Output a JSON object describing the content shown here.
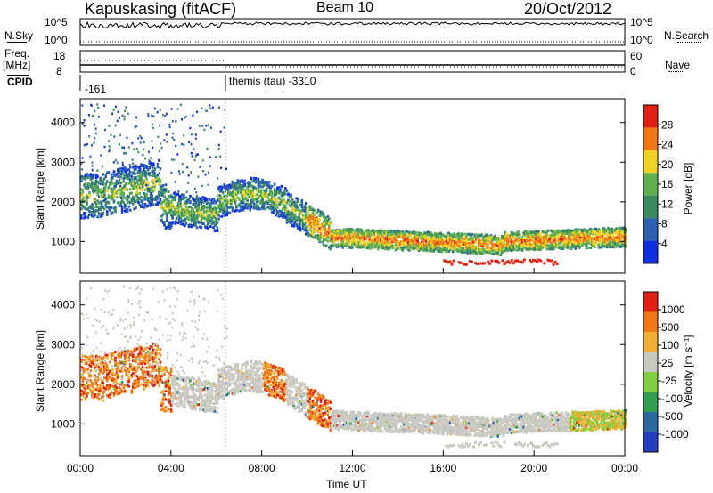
{
  "header": {
    "station": "Kapuskasing (fitACF)",
    "beam": "Beam 10",
    "date": "20/Oct/2012"
  },
  "top_panels": {
    "nsky_label": "N.Sky",
    "nsky_ticks": [
      "10^5",
      "10^0"
    ],
    "nsearch_label": "N.Search",
    "nsearch_ticks": [
      "10^5",
      "10^0"
    ],
    "freq_label": "Freq.",
    "freq_unit": "[MHz]",
    "freq_ticks": [
      "18",
      "8"
    ],
    "nave_label": "Nave",
    "nave_ticks": [
      "60",
      "0"
    ],
    "cpid_label": "CPID",
    "cpid_values": [
      "-161",
      "themis (tau) -3310"
    ]
  },
  "chart_data": [
    {
      "type": "heatmap",
      "name": "power-panel",
      "ylabel": "Slant Range [km]",
      "ylim": [
        200,
        4600
      ],
      "yticks": [
        "1000",
        "2000",
        "3000",
        "4000"
      ],
      "xlim": [
        0,
        24
      ],
      "colorbar_label": "Power [dB]",
      "colorbar_ticks": [
        "4",
        "8",
        "12",
        "16",
        "20",
        "24",
        "28"
      ],
      "colorbar_colors": [
        "#1030e0",
        "#2a60b0",
        "#3a8a60",
        "#60b050",
        "#f0d020",
        "#f07818",
        "#e02010"
      ]
    },
    {
      "type": "heatmap",
      "name": "velocity-panel",
      "ylabel": "Slant Range [km]",
      "ylim": [
        200,
        4600
      ],
      "yticks": [
        "1000",
        "2000",
        "3000",
        "4000"
      ],
      "xlim": [
        0,
        24
      ],
      "colorbar_label": "Velocity [m s⁻¹]",
      "colorbar_ticks": [
        "1000",
        "500",
        "100",
        "25",
        "-25",
        "-100",
        "-500",
        "-1000"
      ],
      "colorbar_colors": [
        "#2040c0",
        "#2a6aa0",
        "#30a050",
        "#80d040",
        "#c8c8c0",
        "#f0b030",
        "#f07818",
        "#e02010"
      ]
    }
  ],
  "xaxis": {
    "label": "Time UT",
    "ticks": [
      "00:00",
      "04:00",
      "08:00",
      "12:00",
      "16:00",
      "20:00",
      "00:00"
    ]
  }
}
